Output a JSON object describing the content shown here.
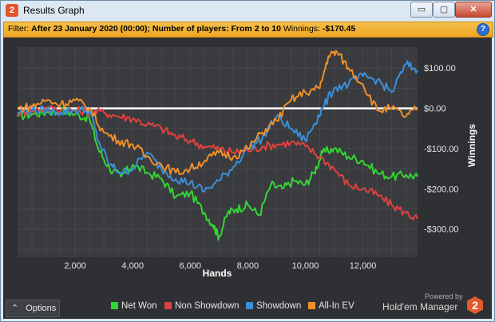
{
  "window": {
    "title": "Results Graph",
    "app_icon": "2",
    "controls": {
      "minimize": "▭",
      "maximize": "▢",
      "close": "✕"
    }
  },
  "filter": {
    "label": "Filter:",
    "text": "After 23 January 2020 (00:00); Number of players: From 2 to 10",
    "winnings_label": "Winnings:",
    "winnings_value": "-$170.45",
    "help": "?"
  },
  "options_button": {
    "arrow": "⌃",
    "label": "Options"
  },
  "legend": [
    {
      "name": "Net Won",
      "color": "#33d633"
    },
    {
      "name": "Non Showdown",
      "color": "#e0413f"
    },
    {
      "name": "Showdown",
      "color": "#3a8fd9"
    },
    {
      "name": "All-In EV",
      "color": "#ef8e2c"
    }
  ],
  "branding": {
    "powered": "Powered by",
    "name": "Hold'em Manager",
    "badge": "2"
  },
  "chart_data": {
    "type": "line",
    "xlabel": "Hands",
    "ylabel": "Winnings",
    "xlim": [
      0,
      13900
    ],
    "ylim": [
      -370,
      150
    ],
    "x_ticks": [
      2000,
      4000,
      6000,
      8000,
      10000,
      12000
    ],
    "x_tick_labels": [
      "2,000",
      "4,000",
      "6,000",
      "8,000",
      "10,000",
      "12,000"
    ],
    "y_ticks": [
      100,
      0,
      -100,
      -200,
      -300
    ],
    "y_tick_labels": [
      "$100.00",
      "$0.00",
      "-$100.00",
      "-$200.00",
      "-$300.00"
    ],
    "zero_line": 0,
    "grid": true,
    "legend_position": "bottom",
    "series": [
      {
        "name": "Net Won",
        "color": "#33d633",
        "points": [
          [
            0,
            -20
          ],
          [
            500,
            -15
          ],
          [
            1000,
            -10
          ],
          [
            1500,
            -5
          ],
          [
            2000,
            -15
          ],
          [
            2500,
            -25
          ],
          [
            2800,
            -100
          ],
          [
            3200,
            -150
          ],
          [
            3600,
            -170
          ],
          [
            4000,
            -140
          ],
          [
            4500,
            -160
          ],
          [
            5000,
            -175
          ],
          [
            5500,
            -220
          ],
          [
            6000,
            -210
          ],
          [
            6500,
            -260
          ],
          [
            6800,
            -290
          ],
          [
            7000,
            -320
          ],
          [
            7300,
            -260
          ],
          [
            7600,
            -250
          ],
          [
            8000,
            -240
          ],
          [
            8400,
            -265
          ],
          [
            8800,
            -190
          ],
          [
            9200,
            -200
          ],
          [
            9600,
            -180
          ],
          [
            10000,
            -190
          ],
          [
            10300,
            -160
          ],
          [
            10600,
            -110
          ],
          [
            11000,
            -100
          ],
          [
            11500,
            -120
          ],
          [
            12000,
            -130
          ],
          [
            12500,
            -160
          ],
          [
            13000,
            -170
          ],
          [
            13500,
            -165
          ],
          [
            13900,
            -170
          ]
        ]
      },
      {
        "name": "Non Showdown",
        "color": "#e0413f",
        "points": [
          [
            0,
            -10
          ],
          [
            500,
            -5
          ],
          [
            1000,
            0
          ],
          [
            1500,
            -3
          ],
          [
            2000,
            -5
          ],
          [
            2500,
            -8
          ],
          [
            3000,
            -10
          ],
          [
            3500,
            -20
          ],
          [
            4000,
            -25
          ],
          [
            4500,
            -40
          ],
          [
            5000,
            -50
          ],
          [
            5500,
            -70
          ],
          [
            6000,
            -80
          ],
          [
            6500,
            -95
          ],
          [
            7000,
            -100
          ],
          [
            7500,
            -110
          ],
          [
            8000,
            -105
          ],
          [
            8500,
            -95
          ],
          [
            9000,
            -90
          ],
          [
            9500,
            -85
          ],
          [
            10000,
            -95
          ],
          [
            10500,
            -120
          ],
          [
            11000,
            -150
          ],
          [
            11500,
            -190
          ],
          [
            12000,
            -200
          ],
          [
            12500,
            -215
          ],
          [
            13000,
            -240
          ],
          [
            13500,
            -260
          ],
          [
            13900,
            -275
          ]
        ]
      },
      {
        "name": "Showdown",
        "color": "#3a8fd9",
        "points": [
          [
            0,
            -10
          ],
          [
            500,
            -5
          ],
          [
            1000,
            -5
          ],
          [
            1500,
            -10
          ],
          [
            2000,
            -5
          ],
          [
            2500,
            -5
          ],
          [
            2800,
            -80
          ],
          [
            3200,
            -140
          ],
          [
            3600,
            -160
          ],
          [
            4000,
            -150
          ],
          [
            4500,
            -110
          ],
          [
            5000,
            -150
          ],
          [
            5500,
            -175
          ],
          [
            6000,
            -185
          ],
          [
            6500,
            -205
          ],
          [
            7000,
            -180
          ],
          [
            7500,
            -145
          ],
          [
            8000,
            -100
          ],
          [
            8500,
            -75
          ],
          [
            9000,
            -20
          ],
          [
            9500,
            -50
          ],
          [
            10000,
            -80
          ],
          [
            10300,
            -40
          ],
          [
            10600,
            0
          ],
          [
            11000,
            50
          ],
          [
            11500,
            60
          ],
          [
            12000,
            80
          ],
          [
            12500,
            70
          ],
          [
            13000,
            40
          ],
          [
            13500,
            110
          ],
          [
            13900,
            95
          ]
        ]
      },
      {
        "name": "All-In EV",
        "color": "#ef8e2c",
        "points": [
          [
            0,
            0
          ],
          [
            500,
            5
          ],
          [
            1000,
            20
          ],
          [
            1500,
            10
          ],
          [
            2000,
            20
          ],
          [
            2500,
            0
          ],
          [
            3000,
            -60
          ],
          [
            3500,
            -80
          ],
          [
            4000,
            -90
          ],
          [
            4500,
            -120
          ],
          [
            5000,
            -140
          ],
          [
            5500,
            -160
          ],
          [
            6000,
            -150
          ],
          [
            6500,
            -130
          ],
          [
            7000,
            -110
          ],
          [
            7500,
            -120
          ],
          [
            8000,
            -100
          ],
          [
            8500,
            -60
          ],
          [
            9000,
            -30
          ],
          [
            9500,
            20
          ],
          [
            10000,
            40
          ],
          [
            10500,
            50
          ],
          [
            10800,
            130
          ],
          [
            11100,
            140
          ],
          [
            11500,
            100
          ],
          [
            12000,
            60
          ],
          [
            12500,
            -5
          ],
          [
            13000,
            0
          ],
          [
            13500,
            -20
          ],
          [
            13900,
            0
          ]
        ]
      }
    ]
  }
}
